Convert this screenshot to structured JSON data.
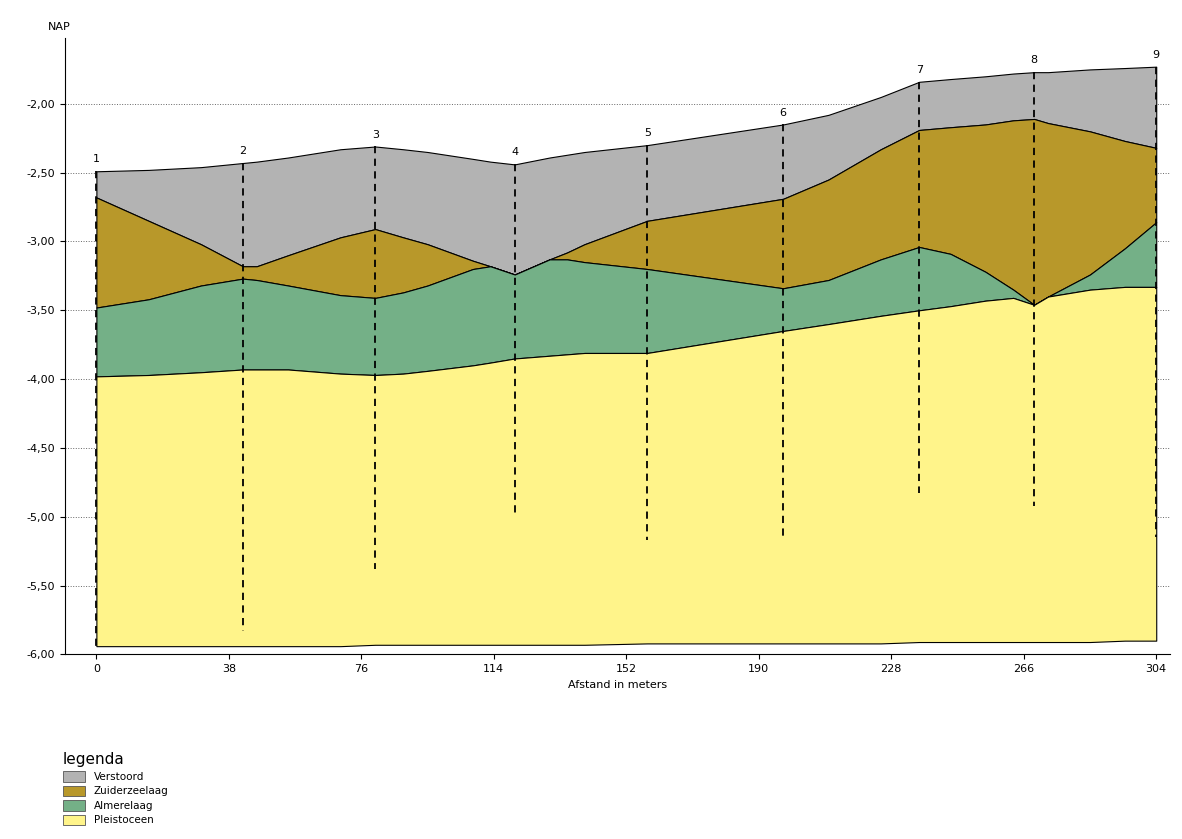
{
  "chart_data": {
    "type": "area",
    "y_label_top": "NAP",
    "x_label": "Afstand in meters",
    "xlim": [
      -9,
      308
    ],
    "xticks": [
      0,
      38,
      76,
      114,
      152,
      190,
      228,
      266,
      304
    ],
    "ylim": [
      -6.0,
      -1.52
    ],
    "yticks": [
      {
        "value": -6.0,
        "label": "-6,00"
      },
      {
        "value": -5.5,
        "label": "-5,50"
      },
      {
        "value": -5.0,
        "label": "-5,00"
      },
      {
        "value": -4.5,
        "label": "-4,50"
      },
      {
        "value": -4.0,
        "label": "-4,00"
      },
      {
        "value": -3.5,
        "label": "-3,50"
      },
      {
        "value": -3.0,
        "label": "-3,00"
      },
      {
        "value": -2.5,
        "label": "-2,50"
      },
      {
        "value": -2.0,
        "label": "-2,00"
      }
    ],
    "grid": true,
    "legend": "lower left",
    "legend_title": "legenda",
    "x": [
      0,
      15,
      30,
      42,
      46,
      55,
      70,
      80,
      88,
      95,
      108,
      113,
      120,
      130,
      135,
      140,
      158,
      197,
      210,
      225,
      236,
      245,
      255,
      263,
      269,
      273,
      285,
      295,
      304
    ],
    "series": [
      {
        "name": "Verstoord",
        "color": "#b3b3b3",
        "top": [
          -2.49,
          -2.48,
          -2.46,
          -2.43,
          -2.42,
          -2.39,
          -2.33,
          -2.31,
          -2.33,
          -2.35,
          -2.4,
          -2.42,
          -2.44,
          -2.39,
          -2.37,
          -2.35,
          -2.3,
          -2.15,
          -2.08,
          -1.95,
          -1.84,
          -1.82,
          -1.8,
          -1.78,
          -1.77,
          -1.77,
          -1.75,
          -1.74,
          -1.73
        ],
        "bottom": [
          -2.68,
          -2.85,
          -3.02,
          -3.18,
          -3.18,
          -3.1,
          -2.97,
          -2.91,
          -2.97,
          -3.02,
          -3.14,
          -3.18,
          -3.24,
          -3.13,
          -3.08,
          -3.02,
          -2.85,
          -2.69,
          -2.55,
          -2.33,
          -2.19,
          -2.17,
          -2.15,
          -2.12,
          -2.11,
          -2.14,
          -2.2,
          -2.27,
          -2.32
        ]
      },
      {
        "name": "Zuiderzeelaag",
        "color": "#b8982a",
        "top": [
          -2.68,
          -2.85,
          -3.02,
          -3.18,
          -3.18,
          -3.1,
          -2.97,
          -2.91,
          -2.97,
          -3.02,
          -3.14,
          -3.18,
          -3.24,
          -3.13,
          -3.08,
          -3.02,
          -2.85,
          -2.69,
          -2.55,
          -2.33,
          -2.19,
          -2.17,
          -2.15,
          -2.12,
          -2.11,
          -2.14,
          -2.2,
          -2.27,
          -2.32
        ],
        "bottom": [
          -3.48,
          -3.42,
          -3.32,
          -3.27,
          -3.28,
          -3.32,
          -3.39,
          -3.41,
          -3.37,
          -3.32,
          -3.2,
          -3.18,
          -3.24,
          -3.13,
          -3.13,
          -3.15,
          -3.2,
          -3.34,
          -3.28,
          -3.13,
          -3.04,
          -3.09,
          -3.22,
          -3.35,
          -3.46,
          -3.4,
          -3.24,
          -3.05,
          -2.86
        ]
      },
      {
        "name": "Almerelaag",
        "color": "#74b087",
        "top": [
          -3.48,
          -3.42,
          -3.32,
          -3.27,
          -3.28,
          -3.32,
          -3.39,
          -3.41,
          -3.37,
          -3.32,
          -3.2,
          -3.18,
          -3.24,
          -3.13,
          -3.13,
          -3.15,
          -3.2,
          -3.34,
          -3.28,
          -3.13,
          -3.04,
          -3.09,
          -3.22,
          -3.35,
          -3.46,
          -3.4,
          -3.24,
          -3.05,
          -2.86
        ],
        "bottom": [
          -3.98,
          -3.97,
          -3.95,
          -3.93,
          -3.93,
          -3.93,
          -3.96,
          -3.97,
          -3.96,
          -3.94,
          -3.9,
          -3.88,
          -3.85,
          -3.83,
          -3.82,
          -3.81,
          -3.81,
          -3.65,
          -3.6,
          -3.54,
          -3.5,
          -3.47,
          -3.43,
          -3.41,
          -3.46,
          -3.4,
          -3.35,
          -3.33,
          -3.33
        ]
      },
      {
        "name": "Pleistoceen",
        "color": "#fff48a",
        "top": [
          -3.98,
          -3.97,
          -3.95,
          -3.93,
          -3.93,
          -3.93,
          -3.96,
          -3.97,
          -3.96,
          -3.94,
          -3.9,
          -3.88,
          -3.85,
          -3.83,
          -3.82,
          -3.81,
          -3.81,
          -3.65,
          -3.6,
          -3.54,
          -3.5,
          -3.47,
          -3.43,
          -3.41,
          -3.46,
          -3.4,
          -3.35,
          -3.33,
          -3.33
        ],
        "bottom": [
          -5.94,
          -5.94,
          -5.94,
          -5.94,
          -5.94,
          -5.94,
          -5.94,
          -5.93,
          -5.93,
          -5.93,
          -5.93,
          -5.93,
          -5.93,
          -5.93,
          -5.93,
          -5.93,
          -5.92,
          -5.92,
          -5.92,
          -5.92,
          -5.91,
          -5.91,
          -5.91,
          -5.91,
          -5.91,
          -5.91,
          -5.91,
          -5.9,
          -5.9
        ]
      }
    ],
    "boreholes": [
      {
        "label": "1",
        "x": 0,
        "top": -2.49,
        "bottom": -5.95
      },
      {
        "label": "2",
        "x": 42,
        "top": -2.43,
        "bottom": -5.83
      },
      {
        "label": "3",
        "x": 80,
        "top": -2.31,
        "bottom": -5.38
      },
      {
        "label": "4",
        "x": 120,
        "top": -2.44,
        "bottom": -5.0
      },
      {
        "label": "5",
        "x": 158,
        "top": -2.3,
        "bottom": -5.17
      },
      {
        "label": "6",
        "x": 197,
        "top": -2.15,
        "bottom": -5.17
      },
      {
        "label": "7",
        "x": 236,
        "top": -1.84,
        "bottom": -4.83
      },
      {
        "label": "8",
        "x": 269,
        "top": -1.77,
        "bottom": -4.92
      },
      {
        "label": "9",
        "x": 304,
        "top": -1.73,
        "bottom": -5.15
      }
    ]
  }
}
